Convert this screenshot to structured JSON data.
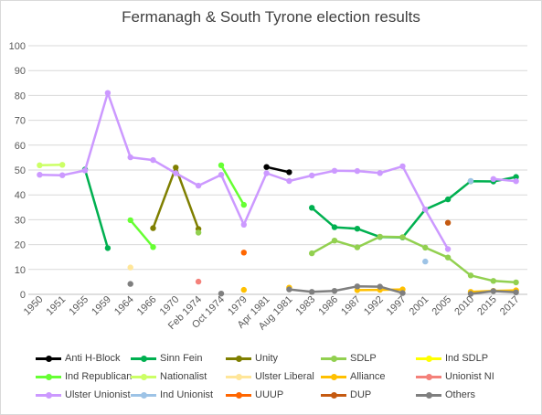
{
  "chart_data": {
    "type": "line",
    "title": "Fermanagh & South Tyrone election results",
    "ylim": [
      0,
      100
    ],
    "yticks": [
      "0",
      "10",
      "20",
      "30",
      "40",
      "50",
      "60",
      "70",
      "80",
      "90",
      "100"
    ],
    "categories": [
      "1950",
      "1951",
      "1955",
      "1959",
      "1964",
      "1966",
      "1970",
      "Feb 1974",
      "Oct 1974",
      "1979",
      "Apr 1981",
      "Aug 1981",
      "1983",
      "1986",
      "1987",
      "1992",
      "1997",
      "2001",
      "2005",
      "2010",
      "2015",
      "2017"
    ],
    "grid": true,
    "legend_position": "bottom",
    "series": [
      {
        "name": "Anti H-Block",
        "color": "#000000",
        "values": [
          null,
          null,
          null,
          null,
          null,
          null,
          null,
          null,
          null,
          null,
          51.2,
          49.1,
          null,
          null,
          null,
          null,
          null,
          null,
          null,
          null,
          null,
          null
        ]
      },
      {
        "name": "Sinn Fein",
        "color": "#00b050",
        "values": [
          null,
          null,
          50.2,
          18.6,
          null,
          null,
          null,
          null,
          null,
          null,
          null,
          null,
          34.8,
          27.0,
          26.4,
          23.1,
          22.9,
          34.1,
          38.2,
          45.5,
          45.4,
          47.2
        ]
      },
      {
        "name": "Unity",
        "color": "#7f7f00",
        "values": [
          null,
          null,
          null,
          null,
          null,
          26.6,
          51.0,
          26.3,
          null,
          null,
          null,
          null,
          null,
          null,
          null,
          null,
          null,
          null,
          null,
          null,
          null,
          null
        ]
      },
      {
        "name": "SDLP",
        "color": "#92d050",
        "values": [
          null,
          null,
          null,
          null,
          null,
          null,
          null,
          24.8,
          null,
          null,
          null,
          null,
          16.5,
          21.6,
          18.9,
          23.2,
          23.0,
          18.8,
          14.8,
          7.6,
          5.4,
          4.8
        ]
      },
      {
        "name": "Ind SDLP",
        "color": "#ffff00",
        "values": [
          null,
          null,
          null,
          null,
          null,
          null,
          null,
          null,
          null,
          null,
          null,
          null,
          null,
          null,
          null,
          null,
          null,
          null,
          null,
          null,
          null,
          null
        ]
      },
      {
        "name": "Ind Republican",
        "color": "#66ff33",
        "values": [
          null,
          null,
          null,
          null,
          29.8,
          19.0,
          null,
          null,
          51.9,
          36.0,
          null,
          null,
          null,
          null,
          null,
          null,
          null,
          null,
          null,
          null,
          null,
          null
        ]
      },
      {
        "name": "Nationalist",
        "color": "#ccff66",
        "values": [
          51.9,
          52.1,
          null,
          null,
          null,
          null,
          null,
          null,
          null,
          null,
          null,
          null,
          null,
          null,
          null,
          null,
          null,
          null,
          null,
          null,
          null,
          null
        ]
      },
      {
        "name": "Ulster Liberal",
        "color": "#ffe699",
        "values": [
          null,
          null,
          null,
          null,
          10.8,
          null,
          null,
          null,
          null,
          null,
          null,
          null,
          null,
          null,
          null,
          null,
          null,
          null,
          null,
          null,
          null,
          null
        ]
      },
      {
        "name": "Alliance",
        "color": "#ffc000",
        "values": [
          null,
          null,
          null,
          null,
          null,
          null,
          null,
          null,
          null,
          1.8,
          null,
          2.7,
          null,
          null,
          1.7,
          1.8,
          2.0,
          null,
          null,
          1.0,
          1.4,
          1.6
        ]
      },
      {
        "name": "Unionist NI",
        "color": "#f4817a",
        "values": [
          null,
          null,
          null,
          null,
          null,
          null,
          null,
          5.1,
          null,
          null,
          null,
          null,
          null,
          null,
          null,
          null,
          null,
          null,
          null,
          null,
          null,
          null
        ]
      },
      {
        "name": "Ulster Unionist",
        "color": "#cc99ff",
        "values": [
          48.1,
          47.9,
          49.8,
          81.0,
          55.1,
          54.0,
          48.7,
          43.7,
          48.1,
          28.0,
          48.7,
          45.6,
          47.8,
          49.7,
          49.6,
          48.8,
          51.5,
          34.1,
          18.2,
          null,
          46.4,
          45.5
        ]
      },
      {
        "name": "Ind Unionist",
        "color": "#9dc3e6",
        "values": [
          null,
          null,
          null,
          null,
          null,
          null,
          null,
          null,
          null,
          null,
          null,
          null,
          null,
          null,
          null,
          null,
          null,
          13.2,
          null,
          45.6,
          null,
          null
        ]
      },
      {
        "name": "UUUP",
        "color": "#ff6600",
        "values": [
          null,
          null,
          null,
          null,
          null,
          null,
          null,
          null,
          null,
          16.8,
          null,
          null,
          null,
          null,
          null,
          null,
          null,
          null,
          null,
          null,
          null,
          null
        ]
      },
      {
        "name": "DUP",
        "color": "#c55a11",
        "values": [
          null,
          null,
          null,
          null,
          null,
          null,
          null,
          null,
          null,
          null,
          null,
          null,
          null,
          null,
          null,
          null,
          null,
          null,
          28.8,
          null,
          null,
          null
        ]
      },
      {
        "name": "Others",
        "color": "#7f7f7f",
        "values": [
          null,
          null,
          null,
          null,
          4.2,
          null,
          null,
          null,
          0.3,
          null,
          null,
          2.0,
          1.0,
          1.4,
          3.2,
          3.1,
          0.5,
          null,
          null,
          0.2,
          1.3,
          0.8
        ]
      }
    ]
  }
}
